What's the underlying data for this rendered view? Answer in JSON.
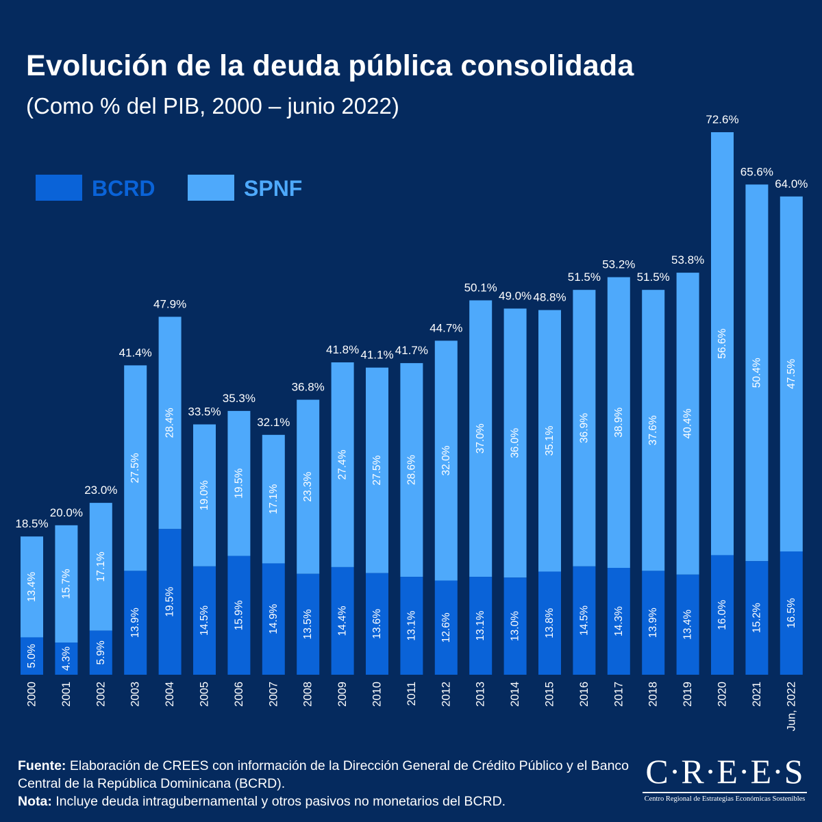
{
  "title": "Evolución de la deuda pública consolidada",
  "subtitle": "(Como % del PIB, 2000 – junio 2022)",
  "legend": [
    {
      "label": "BCRD",
      "color": "#0a63d8",
      "text_color": "#0a63d8"
    },
    {
      "label": "SPNF",
      "color": "#4ea9fb",
      "text_color": "#4ea9fb"
    }
  ],
  "chart_data": {
    "type": "bar",
    "stacked": true,
    "categories": [
      "2000",
      "2001",
      "2002",
      "2003",
      "2004",
      "2005",
      "2006",
      "2007",
      "2008",
      "2009",
      "2010",
      "2011",
      "2012",
      "2013",
      "2014",
      "2015",
      "2016",
      "2017",
      "2018",
      "2019",
      "2020",
      "2021",
      "Jun, 2022"
    ],
    "series": [
      {
        "name": "BCRD",
        "color": "#0a63d8",
        "values": [
          5.0,
          4.3,
          5.9,
          13.9,
          19.5,
          14.5,
          15.9,
          14.9,
          13.5,
          14.4,
          13.6,
          13.1,
          12.6,
          13.1,
          13.0,
          13.8,
          14.5,
          14.3,
          13.9,
          13.4,
          16.0,
          15.2,
          16.5
        ],
        "labels": [
          "5.0%",
          "4.3%",
          "5.9%",
          "13.9%",
          "19.5%",
          "14.5%",
          "15.9%",
          "14.9%",
          "13.5%",
          "14.4%",
          "13.6%",
          "13.1%",
          "12.6%",
          "13.1%",
          "13.0%",
          "13.8%",
          "14.5%",
          "14.3%",
          "13.9%",
          "13.4%",
          "16.0%",
          "15.2%",
          "16.5%"
        ]
      },
      {
        "name": "SPNF",
        "color": "#4ea9fb",
        "values": [
          13.4,
          15.7,
          17.1,
          27.5,
          28.4,
          19.0,
          19.5,
          17.1,
          23.3,
          27.4,
          27.5,
          28.6,
          32.0,
          37.0,
          36.0,
          35.1,
          36.9,
          38.9,
          37.6,
          40.4,
          56.6,
          50.4,
          47.5
        ],
        "labels": [
          "13.4%",
          "15.7%",
          "17.1%",
          "27.5%",
          "28.4%",
          "19.0%",
          "19.5%",
          "17.1%",
          "23.3%",
          "27.4%",
          "27.5%",
          "28.6%",
          "32.0%",
          "37.0%",
          "36.0%",
          "35.1%",
          "36.9%",
          "38.9%",
          "37.6%",
          "40.4%",
          "56.6%",
          "50.4%",
          "47.5%"
        ]
      }
    ],
    "totals": [
      18.5,
      20.0,
      23.0,
      41.4,
      47.9,
      33.5,
      35.3,
      32.1,
      36.8,
      41.8,
      41.1,
      41.7,
      44.7,
      50.1,
      49.0,
      48.8,
      51.5,
      53.2,
      51.5,
      53.8,
      72.6,
      65.6,
      64.0
    ],
    "total_labels": [
      "18.5%",
      "20.0%",
      "23.0%",
      "41.4%",
      "47.9%",
      "33.5%",
      "35.3%",
      "32.1%",
      "36.8%",
      "41.8%",
      "41.1%",
      "41.7%",
      "44.7%",
      "50.1%",
      "49.0%",
      "48.8%",
      "51.5%",
      "53.2%",
      "51.5%",
      "53.8%",
      "72.6%",
      "65.6%",
      "64.0%"
    ],
    "ylim": [
      0,
      72.6
    ],
    "grid": false,
    "legend_position": "top-left"
  },
  "footer": {
    "source_label": "Fuente:",
    "source_text": " Elaboración de CREES con información de la Dirección General de Crédito Público y el Banco Central de la República Dominicana (BCRD).",
    "note_label": "Nota:",
    "note_text": " Incluye deuda intragubernamental y otros pasivos no monetarios del BCRD."
  },
  "logo": {
    "text": "C·R·E·E·S",
    "subtext": "Centro Regional de Estrategias Económicas Sostenibles"
  }
}
